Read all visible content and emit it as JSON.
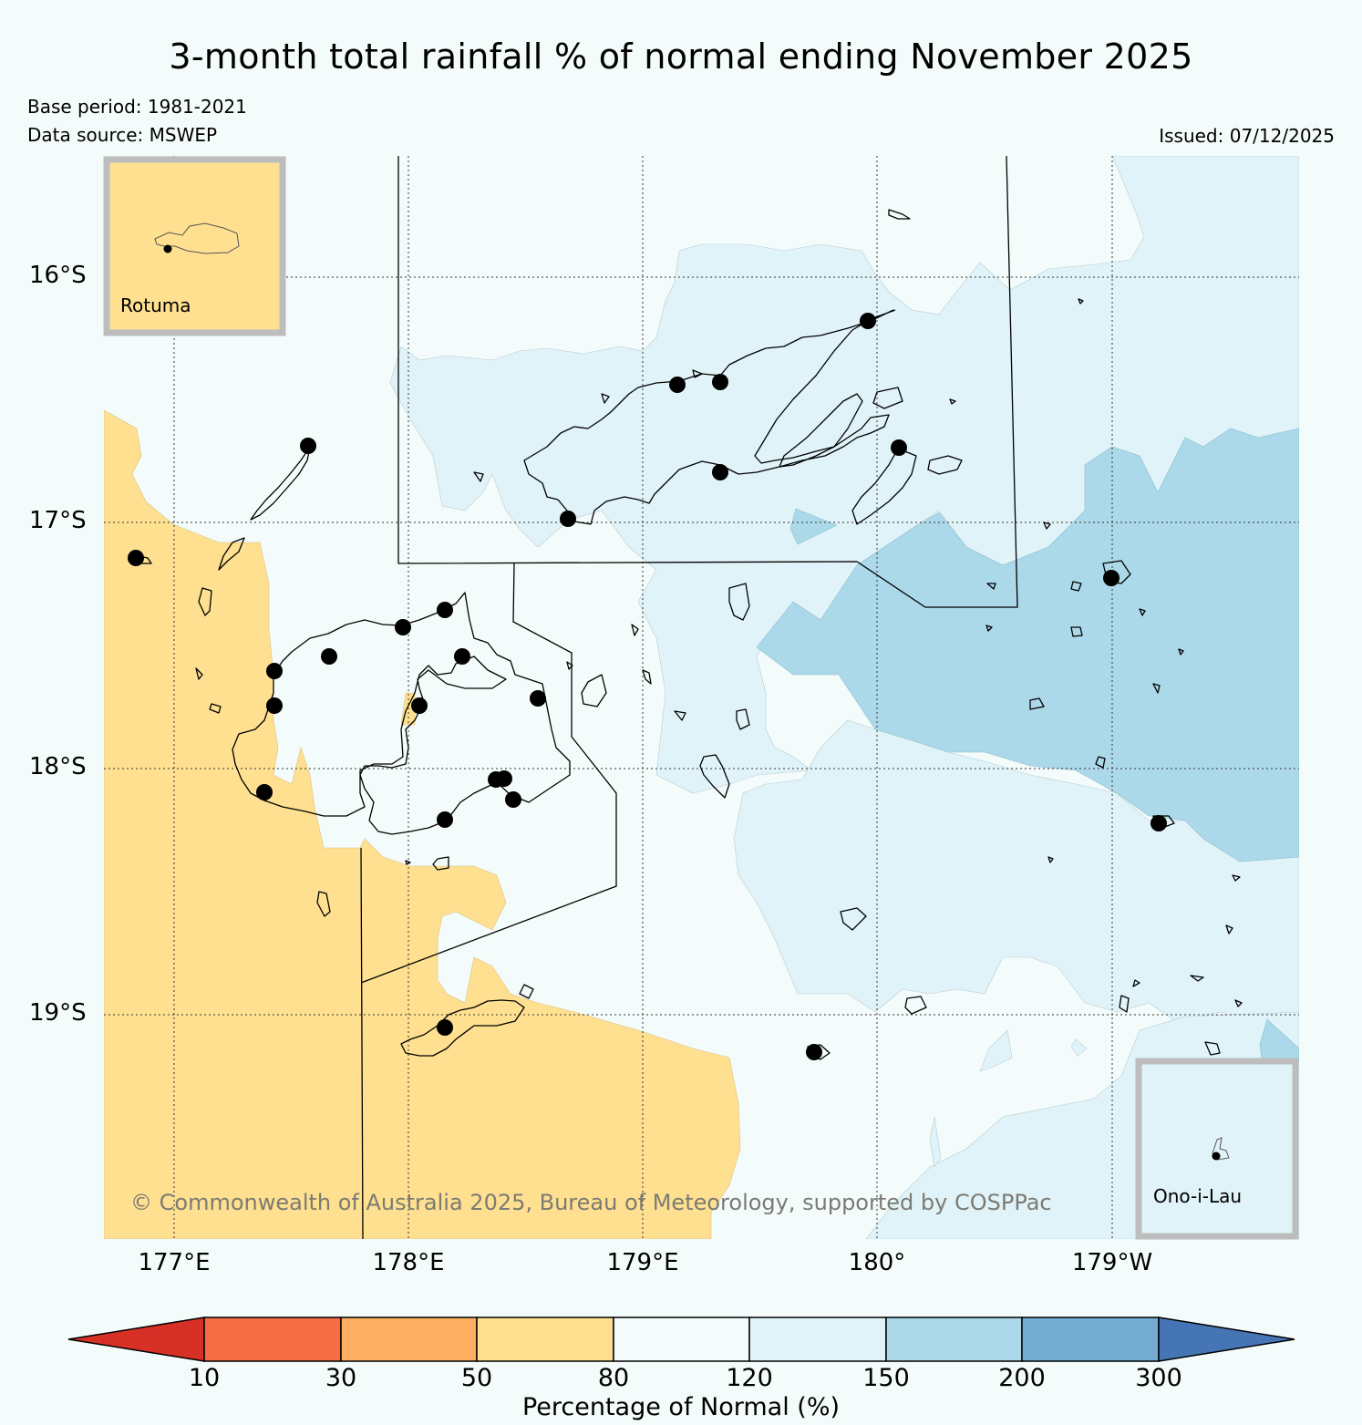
{
  "title": "3-month total rainfall % of normal ending November 2025",
  "base_period": "Base period: 1981-2021",
  "data_source": "Data source: MSWEP",
  "issued": "Issued: 07/12/2025",
  "copyright": "© Commonwealth of Australia 2025, Bureau of Meteorology, supported by COSPPac",
  "latitude_labels": [
    "16°S",
    "17°S",
    "18°S",
    "19°S"
  ],
  "longitude_labels": [
    "177°E",
    "178°E",
    "179°E",
    "180°",
    "179°W"
  ],
  "insets": [
    {
      "name": "Rotuma",
      "category": "50-80"
    },
    {
      "name": "Ono-i-Lau",
      "category": "120-150"
    }
  ],
  "colorbar": {
    "title": "Percentage of Normal (%)",
    "ticks": [
      "10",
      "30",
      "50",
      "80",
      "120",
      "150",
      "200",
      "300"
    ],
    "colors": [
      "#d73027",
      "#f46d43",
      "#fdae61",
      "#fee090",
      "#f4fbfb",
      "#e0f3f8",
      "#abd9e9",
      "#74add1",
      "#4575b4"
    ]
  },
  "legend_colors": {
    "below_50_80": "#fee090",
    "normal_80_120": "#f4fbfb",
    "above_120_150": "#e0f3f8",
    "above_150_200": "#abd9e9",
    "above_200_300": "#74add1"
  },
  "stations_count": 27
}
